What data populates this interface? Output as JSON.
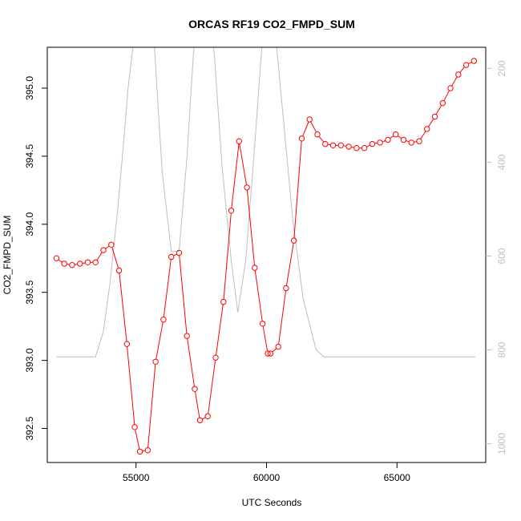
{
  "chart_data": {
    "type": "line",
    "title": "ORCAS RF19 CO2_FMPD_SUM",
    "xlabel": "UTC Seconds",
    "ylabel": "CO2_FMPD_SUM",
    "xlim": [
      51600,
      68400
    ],
    "ylim": [
      392.25,
      395.3
    ],
    "x_ticks": [
      55000,
      60000,
      65000
    ],
    "x_tick_labels": [
      "55000",
      "60000",
      "65000"
    ],
    "y_ticks": [
      392.5,
      393.0,
      393.5,
      394.0,
      394.5,
      395.0
    ],
    "y_tick_labels": [
      "392.5",
      "393.0",
      "393.5",
      "394.0",
      "394.5",
      "395.0"
    ],
    "y2_range": [
      1040,
      155
    ],
    "y2_reversed": true,
    "y2_ticks": [
      200,
      400,
      600,
      800,
      1000
    ],
    "y2_tick_labels": [
      "200",
      "400",
      "600",
      "800",
      "1000"
    ],
    "colors": {
      "co2": "#ff0000",
      "secondary": "#bebebe",
      "frame": "#000000"
    },
    "series": [
      {
        "style": "points-lines",
        "color": "#ff0000",
        "x": [
          51950,
          52250,
          52550,
          52850,
          53150,
          53450,
          53750,
          54050,
          54350,
          54650,
          54950,
          55150,
          55450,
          55750,
          56050,
          56350,
          56650,
          56950,
          57250,
          57450,
          57750,
          58050,
          58350,
          58650,
          58950,
          59250,
          59550,
          59850,
          60050,
          60150,
          60450,
          60750,
          61050,
          61350,
          61650,
          61950,
          62250,
          62550,
          62850,
          63150,
          63450,
          63750,
          64050,
          64350,
          64650,
          64950,
          65250,
          65550,
          65850,
          66150,
          66450,
          66750,
          67050,
          67350,
          67650,
          67950
        ],
        "values": [
          393.75,
          393.71,
          393.7,
          393.71,
          393.72,
          393.72,
          393.81,
          393.85,
          393.66,
          393.12,
          392.51,
          392.33,
          392.34,
          392.99,
          393.3,
          393.76,
          393.79,
          393.18,
          392.79,
          392.56,
          392.59,
          393.02,
          393.43,
          394.1,
          394.61,
          394.27,
          393.68,
          393.27,
          393.05,
          393.05,
          393.1,
          393.53,
          393.88,
          394.63,
          394.77,
          394.66,
          394.59,
          394.58,
          394.58,
          394.57,
          394.56,
          394.56,
          394.59,
          394.6,
          394.62,
          394.66,
          394.62,
          394.6,
          394.61,
          394.7,
          394.79,
          394.89,
          395.0,
          395.1,
          395.17,
          395.2
        ]
      },
      {
        "style": "line",
        "axis": "right",
        "color": "#bebebe",
        "x": [
          51950,
          53450,
          53750,
          54000,
          54300,
          54550,
          54700,
          55000,
          55200,
          55450,
          55700,
          56000,
          56350,
          56650,
          56950,
          57200,
          57350,
          57700,
          58000,
          58300,
          58650,
          58900,
          59200,
          59500,
          59800,
          60000,
          60200,
          60600,
          61000,
          61400,
          61900,
          62200,
          68000
        ],
        "values": [
          815,
          815,
          760,
          660,
          500,
          340,
          240,
          100,
          40,
          40,
          150,
          420,
          590,
          590,
          390,
          170,
          40,
          40,
          170,
          410,
          610,
          720,
          610,
          400,
          170,
          40,
          40,
          280,
          520,
          690,
          800,
          815,
          815
        ]
      }
    ]
  }
}
